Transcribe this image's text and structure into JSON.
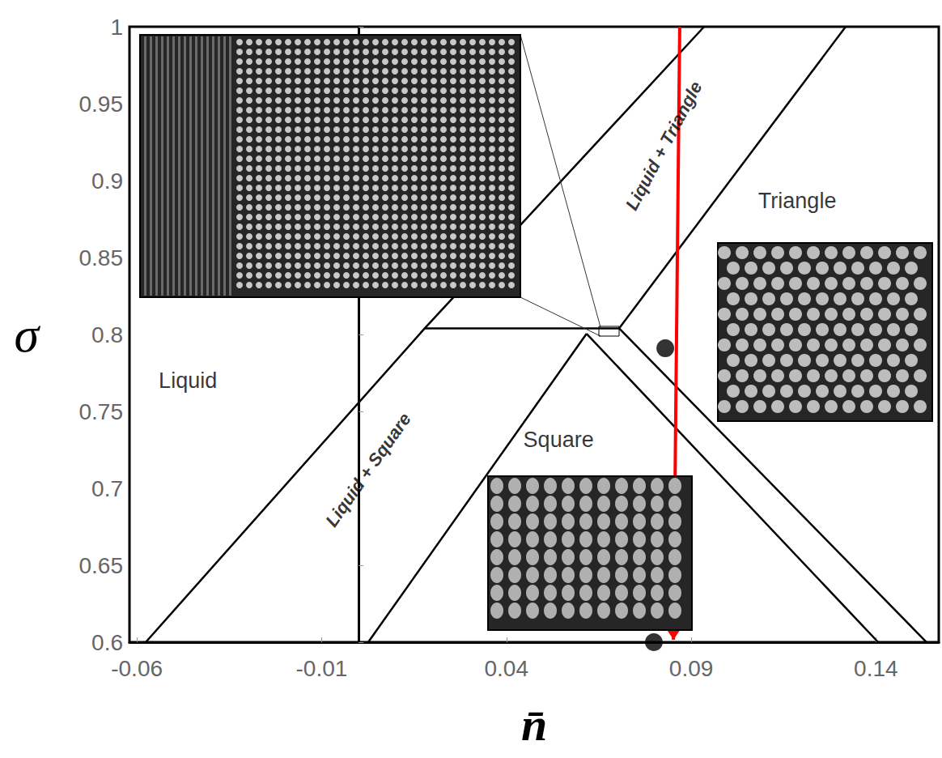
{
  "chart_data": {
    "type": "line",
    "xlabel": "n̄",
    "ylabel": "σ",
    "xlim": [
      -0.062,
      0.157
    ],
    "xticks": [
      -0.06,
      -0.01,
      0.04,
      0.09,
      0.14
    ],
    "ylim": [
      0.6,
      1
    ],
    "yticks": [
      0.6,
      0.65,
      0.7,
      0.75,
      0.8,
      0.85,
      0.9,
      0.95,
      1
    ],
    "grid": false,
    "series": [
      {
        "type": "line",
        "color": "#000000",
        "line_style": "solid",
        "x": [
          -0.0576,
          0.0179,
          0.0935
        ],
        "values": [
          0.6,
          0.804,
          1.0
        ]
      },
      {
        "type": "line",
        "color": "#000000",
        "line_style": "solid",
        "x": [
          0.0026,
          0.0617
        ],
        "values": [
          0.6,
          0.8005
        ]
      },
      {
        "type": "line",
        "color": "#000000",
        "line_style": "solid",
        "x": [
          0.0617,
          0.1406
        ],
        "values": [
          0.8005,
          0.6
        ]
      },
      {
        "type": "line",
        "color": "#000000",
        "line_style": "solid",
        "x": [
          0.0705,
          0.1537
        ],
        "values": [
          0.804,
          0.6
        ]
      },
      {
        "type": "line",
        "color": "#000000",
        "line_style": "solid",
        "x": [
          0.0705,
          0.1318
        ],
        "values": [
          0.804,
          1.0
        ]
      },
      {
        "type": "line",
        "color": "#000000",
        "line_style": "solid",
        "x": [
          0.0179,
          0.0705
        ],
        "values": [
          0.804,
          0.804
        ]
      },
      {
        "type": "arrow",
        "color": "#ff0000",
        "line_style": "solid",
        "x": [
          0.0869,
          0.0852
        ],
        "values": [
          1.0,
          0.6016
        ]
      },
      {
        "type": "scatter",
        "color": "#000000",
        "marker": "circle",
        "x": [
          0.083,
          0.0799
        ],
        "values": [
          0.791,
          0.6
        ]
      }
    ],
    "annotations": [
      {
        "text": "Liquid",
        "x": -0.0462,
        "y": 0.77
      },
      {
        "text": "Liquid + Square",
        "x": 0.0026,
        "y": 0.712
      },
      {
        "text": "Square",
        "x": 0.0541,
        "y": 0.7316
      },
      {
        "text": "Triangle",
        "x": 0.1187,
        "y": 0.887
      },
      {
        "text": "Liquid + Triangle",
        "x": 0.0826,
        "y": 0.9226
      }
    ]
  }
}
